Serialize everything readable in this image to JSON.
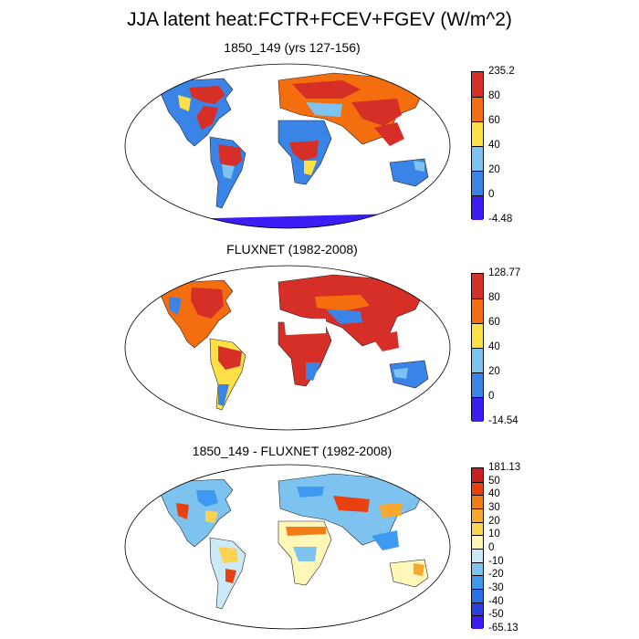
{
  "title": "JJA latent heat:FCTR+FCEV+FGEV (W/m^2)",
  "panels": [
    {
      "title": "1850_149 (yrs 127-156)",
      "colorbar": {
        "labels": [
          "235.2",
          "80",
          "60",
          "40",
          "20",
          "0",
          "-4.48"
        ],
        "colors": [
          "#d62f27",
          "#f46d0e",
          "#fce045",
          "#7ec3ef",
          "#3a84e8",
          "#3a1ef5"
        ]
      }
    },
    {
      "title": "FLUXNET (1982-2008)",
      "colorbar": {
        "labels": [
          "128.77",
          "80",
          "60",
          "40",
          "20",
          "0",
          "-14.54"
        ],
        "colors": [
          "#d62f27",
          "#f46d0e",
          "#fce045",
          "#7ec3ef",
          "#3a84e8",
          "#3a1ef5"
        ]
      }
    },
    {
      "title": "1850_149 - FLUXNET (1982-2008)",
      "colorbar": {
        "labels": [
          "181.13",
          "50",
          "40",
          "30",
          "20",
          "10",
          "0",
          "-10",
          "-20",
          "-30",
          "-40",
          "-50",
          "-65.13"
        ],
        "colors": [
          "#c81f1f",
          "#e8400f",
          "#f47c17",
          "#f9a82e",
          "#fcd251",
          "#fff7b8",
          "#cce9f7",
          "#7ec3ef",
          "#3d9af0",
          "#2a6ee8",
          "#2b3fe0",
          "#3a1ef5"
        ]
      }
    }
  ]
}
